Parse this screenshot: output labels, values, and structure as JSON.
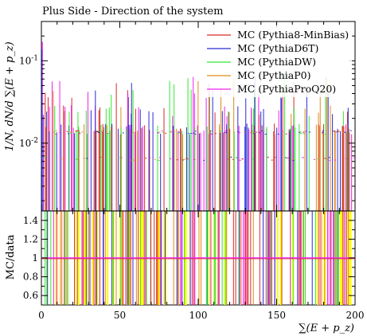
{
  "chart_data": {
    "type": "histogram",
    "title": "Plus Side - Direction of the system",
    "upper_panel": {
      "ylabel": "1/N, dN/d ∑(E + p_z)",
      "yscale": "log",
      "ylim": [
        0.0015,
        0.3
      ],
      "yticks": [
        {
          "value": 0.1,
          "label": "10^-1"
        },
        {
          "value": 0.01,
          "label": "10^-2"
        }
      ]
    },
    "lower_panel": {
      "ylabel": "MC/data",
      "ylim": [
        0.5,
        1.5
      ],
      "yticks": [
        0.6,
        0.8,
        1,
        1.2,
        1.4
      ],
      "reference_line": 1
    },
    "xlabel": "∑(E + p_z)",
    "xlim": [
      0,
      200
    ],
    "xticks": [
      0,
      50,
      100,
      150,
      200
    ],
    "legend_position": "top-right",
    "series": [
      {
        "name": "MC (Pythia8-MinBias)",
        "color": "#d62a2a"
      },
      {
        "name": "MC (PythiaD6T)",
        "color": "#2a2ad6"
      },
      {
        "name": "MC (PythiaDW)",
        "color": "#33e633"
      },
      {
        "name": "MC (PythiaP0)",
        "color": "#e08a1a"
      },
      {
        "name": "MC (PythiaProQ20)",
        "color": "#ee22ee"
      }
    ],
    "ratio_band_color": "#ffff00",
    "baseline_value": 0.0015,
    "typical_spike_values": [
      0.06,
      0.04,
      0.025,
      0.015
    ],
    "typical_plateau_value": 0.0135,
    "secondary_plateau_value": 0.0065,
    "peak_value_at_x0": 0.17
  }
}
